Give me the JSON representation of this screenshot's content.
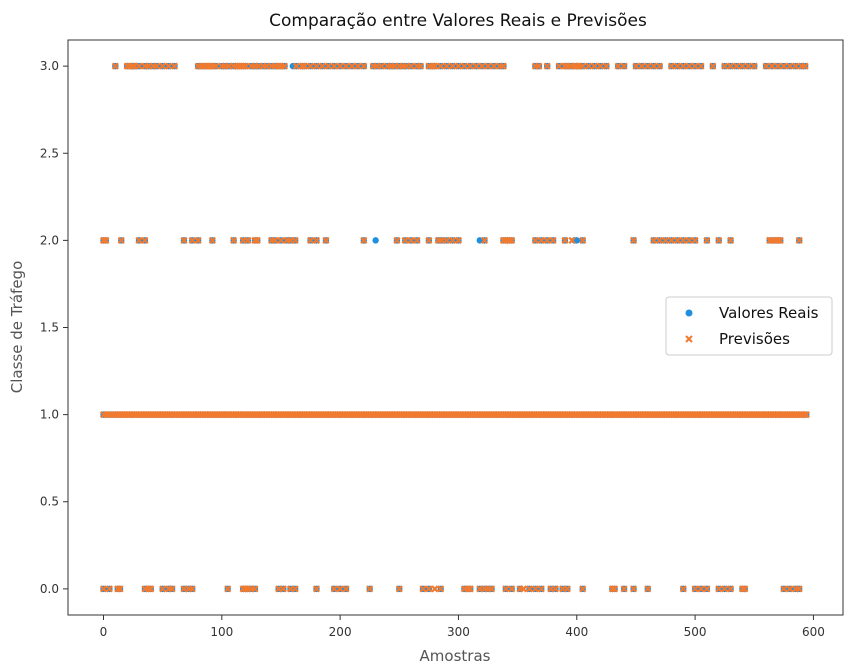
{
  "chart_data": {
    "type": "scatter",
    "title": "Comparação entre Valores Reais e Previsões",
    "xlabel": "Amostras",
    "ylabel": "Classe de Tráfego",
    "xlim": [
      -30,
      625
    ],
    "ylim": [
      -0.15,
      3.15
    ],
    "xticks": [
      0,
      100,
      200,
      300,
      400,
      500,
      600
    ],
    "yticks": [
      0.0,
      0.5,
      1.0,
      1.5,
      2.0,
      2.5,
      3.0
    ],
    "xtick_labels": [
      "0",
      "100",
      "200",
      "300",
      "400",
      "500",
      "600"
    ],
    "ytick_labels": [
      "0.0",
      "0.5",
      "1.0",
      "1.5",
      "2.0",
      "2.5",
      "3.0"
    ],
    "grid": false,
    "legend_position": "center-right",
    "series": [
      {
        "name": "Valores Reais",
        "marker": "circle",
        "color": "#1f8fe0",
        "points": {
          "3": [
            10,
            20,
            22,
            25,
            26,
            30,
            35,
            38,
            42,
            45,
            50,
            55,
            60,
            80,
            83,
            85,
            88,
            90,
            92,
            95,
            100,
            103,
            106,
            110,
            113,
            115,
            118,
            120,
            125,
            128,
            131,
            135,
            138,
            142,
            145,
            148,
            150,
            153,
            160,
            163,
            168,
            170,
            175,
            180,
            185,
            190,
            195,
            200,
            205,
            210,
            215,
            220,
            228,
            231,
            235,
            240,
            243,
            246,
            250,
            253,
            256,
            260,
            265,
            268,
            275,
            278,
            280,
            285,
            290,
            295,
            300,
            305,
            310,
            315,
            320,
            325,
            330,
            335,
            338,
            365,
            368,
            375,
            385,
            390,
            392,
            395,
            398,
            400,
            402,
            405,
            410,
            415,
            420,
            425,
            435,
            440,
            450,
            455,
            460,
            465,
            470,
            480,
            485,
            490,
            495,
            500,
            505,
            515,
            525,
            530,
            535,
            540,
            545,
            550,
            560,
            565,
            570,
            575,
            580,
            585,
            590,
            593
          ],
          "2": [
            0,
            2,
            15,
            30,
            35,
            68,
            75,
            80,
            92,
            110,
            118,
            122,
            128,
            130,
            142,
            145,
            150,
            155,
            158,
            162,
            175,
            180,
            188,
            220,
            230,
            248,
            255,
            260,
            265,
            275,
            283,
            286,
            290,
            295,
            300,
            318,
            322,
            338,
            340,
            343,
            345,
            365,
            370,
            375,
            380,
            390,
            398,
            400,
            405,
            448,
            465,
            470,
            475,
            480,
            485,
            490,
            495,
            500,
            510,
            520,
            530,
            563,
            565,
            568,
            570,
            572,
            588
          ],
          "1": [
            0,
            3,
            5,
            8,
            10,
            12,
            14,
            16,
            18,
            20,
            22,
            24,
            26,
            28,
            30,
            32,
            34,
            36,
            38,
            40,
            42,
            44,
            46,
            48,
            50,
            52,
            54,
            56,
            58,
            60,
            62,
            64,
            66,
            68,
            70,
            72,
            74,
            76,
            78,
            80,
            82,
            84,
            86,
            88,
            90,
            92,
            94,
            96,
            98,
            100,
            102,
            104,
            106,
            108,
            110,
            112,
            114,
            116,
            118,
            120,
            122,
            124,
            126,
            128,
            130,
            132,
            134,
            136,
            138,
            140,
            142,
            144,
            146,
            148,
            150,
            152,
            154,
            156,
            158,
            160,
            162,
            164,
            166,
            168,
            170,
            172,
            174,
            176,
            178,
            180,
            182,
            184,
            186,
            188,
            190,
            192,
            194,
            196,
            198,
            200,
            202,
            204,
            206,
            208,
            210,
            212,
            214,
            216,
            218,
            220,
            222,
            224,
            226,
            228,
            230,
            232,
            234,
            236,
            238,
            240,
            242,
            244,
            246,
            248,
            250,
            252,
            254,
            256,
            258,
            260,
            262,
            264,
            266,
            268,
            270,
            272,
            274,
            276,
            278,
            280,
            282,
            284,
            286,
            288,
            290,
            292,
            294,
            296,
            298,
            300,
            302,
            304,
            306,
            308,
            310,
            312,
            314,
            316,
            318,
            320,
            322,
            324,
            326,
            328,
            330,
            332,
            334,
            336,
            338,
            340,
            342,
            344,
            346,
            348,
            350,
            352,
            354,
            356,
            358,
            360,
            362,
            364,
            366,
            368,
            370,
            372,
            374,
            376,
            378,
            380,
            382,
            384,
            386,
            388,
            390,
            392,
            394,
            396,
            398,
            400,
            402,
            404,
            406,
            408,
            410,
            412,
            414,
            416,
            418,
            420,
            422,
            424,
            426,
            428,
            430,
            432,
            434,
            436,
            438,
            440,
            442,
            444,
            446,
            448,
            450,
            452,
            454,
            456,
            458,
            460,
            462,
            464,
            466,
            468,
            470,
            472,
            474,
            476,
            478,
            480,
            482,
            484,
            486,
            488,
            490,
            492,
            494,
            496,
            498,
            500,
            502,
            504,
            506,
            508,
            510,
            512,
            514,
            516,
            518,
            520,
            522,
            524,
            526,
            528,
            530,
            532,
            534,
            536,
            538,
            540,
            542,
            544,
            546,
            548,
            550,
            552,
            554,
            556,
            558,
            560,
            562,
            564,
            566,
            568,
            570,
            572,
            574,
            576,
            578,
            580,
            582,
            584,
            586,
            588,
            590,
            592,
            594
          ],
          "0": [
            0,
            5,
            12,
            14,
            35,
            38,
            40,
            50,
            55,
            58,
            68,
            72,
            75,
            105,
            118,
            120,
            122,
            125,
            128,
            148,
            152,
            158,
            162,
            180,
            195,
            200,
            205,
            225,
            250,
            270,
            275,
            285,
            305,
            308,
            310,
            318,
            322,
            325,
            328,
            340,
            345,
            352,
            360,
            365,
            370,
            378,
            382,
            388,
            392,
            405,
            430,
            432,
            440,
            448,
            460,
            490,
            500,
            505,
            510,
            520,
            525,
            530,
            540,
            542,
            575,
            580,
            585,
            588
          ]
        }
      },
      {
        "name": "Previsões",
        "marker": "x",
        "color": "#f07a30",
        "points": {
          "3": [
            10,
            20,
            22,
            25,
            26,
            30,
            35,
            38,
            42,
            45,
            50,
            55,
            60,
            80,
            83,
            85,
            88,
            90,
            92,
            95,
            100,
            103,
            106,
            110,
            113,
            115,
            118,
            120,
            125,
            128,
            131,
            135,
            138,
            142,
            145,
            148,
            150,
            153,
            163,
            168,
            170,
            175,
            180,
            185,
            190,
            195,
            200,
            205,
            210,
            215,
            220,
            228,
            231,
            235,
            240,
            243,
            246,
            250,
            253,
            256,
            260,
            265,
            268,
            275,
            278,
            280,
            285,
            290,
            295,
            300,
            305,
            310,
            315,
            320,
            325,
            330,
            335,
            338,
            365,
            368,
            375,
            385,
            390,
            392,
            395,
            398,
            400,
            402,
            405,
            410,
            415,
            420,
            425,
            435,
            440,
            450,
            455,
            460,
            465,
            470,
            480,
            485,
            490,
            495,
            500,
            505,
            515,
            525,
            530,
            535,
            540,
            545,
            550,
            560,
            565,
            570,
            575,
            580,
            585,
            590,
            593
          ],
          "2": [
            0,
            2,
            15,
            30,
            35,
            68,
            75,
            80,
            92,
            110,
            118,
            122,
            128,
            130,
            142,
            145,
            150,
            155,
            158,
            162,
            175,
            180,
            188,
            220,
            248,
            255,
            260,
            265,
            275,
            283,
            286,
            290,
            295,
            300,
            322,
            338,
            340,
            343,
            345,
            365,
            370,
            375,
            380,
            390,
            396,
            405,
            448,
            465,
            470,
            475,
            480,
            485,
            490,
            495,
            500,
            510,
            520,
            530,
            563,
            565,
            568,
            570,
            572,
            588
          ],
          "1": [
            0,
            3,
            5,
            8,
            10,
            12,
            14,
            16,
            18,
            20,
            22,
            24,
            26,
            28,
            30,
            32,
            34,
            36,
            38,
            40,
            42,
            44,
            46,
            48,
            50,
            52,
            54,
            56,
            58,
            60,
            62,
            64,
            66,
            68,
            70,
            72,
            74,
            76,
            78,
            80,
            82,
            84,
            86,
            88,
            90,
            92,
            94,
            96,
            98,
            100,
            102,
            104,
            106,
            108,
            110,
            112,
            114,
            116,
            118,
            120,
            122,
            124,
            126,
            128,
            130,
            132,
            134,
            136,
            138,
            140,
            142,
            144,
            146,
            148,
            150,
            152,
            154,
            156,
            158,
            160,
            162,
            164,
            166,
            168,
            170,
            172,
            174,
            176,
            178,
            180,
            182,
            184,
            186,
            188,
            190,
            192,
            194,
            196,
            198,
            200,
            202,
            204,
            206,
            208,
            210,
            212,
            214,
            216,
            218,
            220,
            222,
            224,
            226,
            228,
            230,
            232,
            234,
            236,
            238,
            240,
            242,
            244,
            246,
            248,
            250,
            252,
            254,
            256,
            258,
            260,
            262,
            264,
            266,
            268,
            270,
            272,
            274,
            276,
            278,
            280,
            282,
            284,
            286,
            288,
            290,
            292,
            294,
            296,
            298,
            300,
            302,
            304,
            306,
            308,
            310,
            312,
            314,
            316,
            318,
            320,
            322,
            324,
            326,
            328,
            330,
            332,
            334,
            336,
            338,
            340,
            342,
            344,
            346,
            348,
            350,
            352,
            354,
            356,
            358,
            360,
            362,
            364,
            366,
            368,
            370,
            372,
            374,
            376,
            378,
            380,
            382,
            384,
            386,
            388,
            390,
            392,
            394,
            396,
            398,
            400,
            402,
            404,
            406,
            408,
            410,
            412,
            414,
            416,
            418,
            420,
            422,
            424,
            426,
            428,
            430,
            432,
            434,
            436,
            438,
            440,
            442,
            444,
            446,
            448,
            450,
            452,
            454,
            456,
            458,
            460,
            462,
            464,
            466,
            468,
            470,
            472,
            474,
            476,
            478,
            480,
            482,
            484,
            486,
            488,
            490,
            492,
            494,
            496,
            498,
            500,
            502,
            504,
            506,
            508,
            510,
            512,
            514,
            516,
            518,
            520,
            522,
            524,
            526,
            528,
            530,
            532,
            534,
            536,
            538,
            540,
            542,
            544,
            546,
            548,
            550,
            552,
            554,
            556,
            558,
            560,
            562,
            564,
            566,
            568,
            570,
            572,
            574,
            576,
            578,
            580,
            582,
            584,
            586,
            588,
            590,
            592,
            594
          ],
          "0": [
            0,
            5,
            12,
            14,
            35,
            38,
            40,
            50,
            55,
            58,
            68,
            72,
            75,
            105,
            118,
            120,
            122,
            125,
            128,
            148,
            152,
            158,
            162,
            180,
            195,
            200,
            205,
            225,
            250,
            270,
            275,
            280,
            285,
            305,
            308,
            310,
            318,
            322,
            325,
            328,
            340,
            345,
            352,
            355,
            360,
            365,
            370,
            378,
            382,
            388,
            392,
            405,
            430,
            432,
            440,
            448,
            460,
            490,
            500,
            505,
            510,
            520,
            525,
            530,
            540,
            542,
            575,
            580,
            585,
            588
          ]
        }
      }
    ]
  }
}
